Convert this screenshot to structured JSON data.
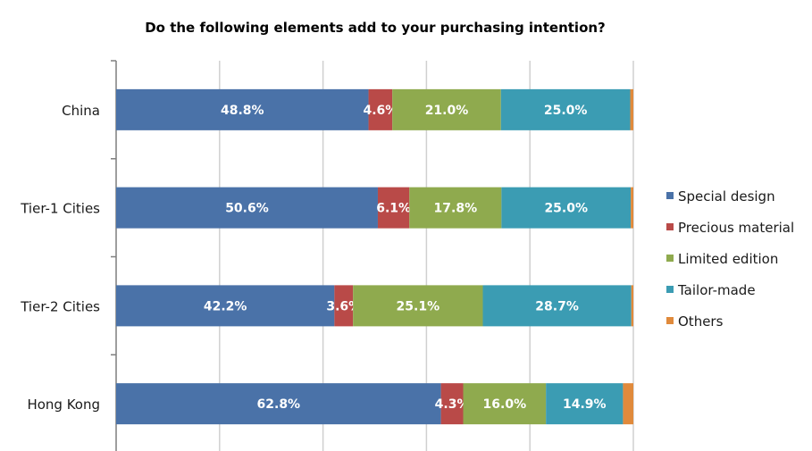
{
  "chart_data": {
    "type": "bar",
    "orientation": "horizontal",
    "stacked": true,
    "title": "Do the following elements add to your purchasing intention?",
    "categories": [
      "China",
      "Tier-1 Cities",
      "Tier-2 Cities",
      "Hong Kong"
    ],
    "series": [
      {
        "name": "Special design",
        "color": "#4a72a8",
        "values": [
          48.8,
          50.6,
          42.2,
          62.8
        ]
      },
      {
        "name": "Precious material",
        "color": "#b94a48",
        "values": [
          4.6,
          6.1,
          3.6,
          4.3
        ]
      },
      {
        "name": "Limited edition",
        "color": "#8faa4e",
        "values": [
          21.0,
          17.8,
          25.1,
          16.0
        ]
      },
      {
        "name": "Tailor-made",
        "color": "#3b9cb3",
        "values": [
          25.0,
          25.0,
          28.7,
          14.9
        ]
      },
      {
        "name": "Others",
        "color": "#e08a3c",
        "values": [
          0.6,
          0.5,
          0.4,
          2.0
        ]
      }
    ],
    "data_labels": [
      [
        "48.8%",
        "4.6%",
        "21.0%",
        "25.0%",
        ""
      ],
      [
        "50.6%",
        "6.1%",
        "17.8%",
        "25.0%",
        ""
      ],
      [
        "42.2%",
        "3.6%",
        "25.1%",
        "28.7%",
        ""
      ],
      [
        "62.8%",
        "4.3%",
        "16.0%",
        "14.9%",
        ""
      ]
    ],
    "xlim": [
      0,
      100
    ],
    "grid": true,
    "legend_position": "right"
  }
}
